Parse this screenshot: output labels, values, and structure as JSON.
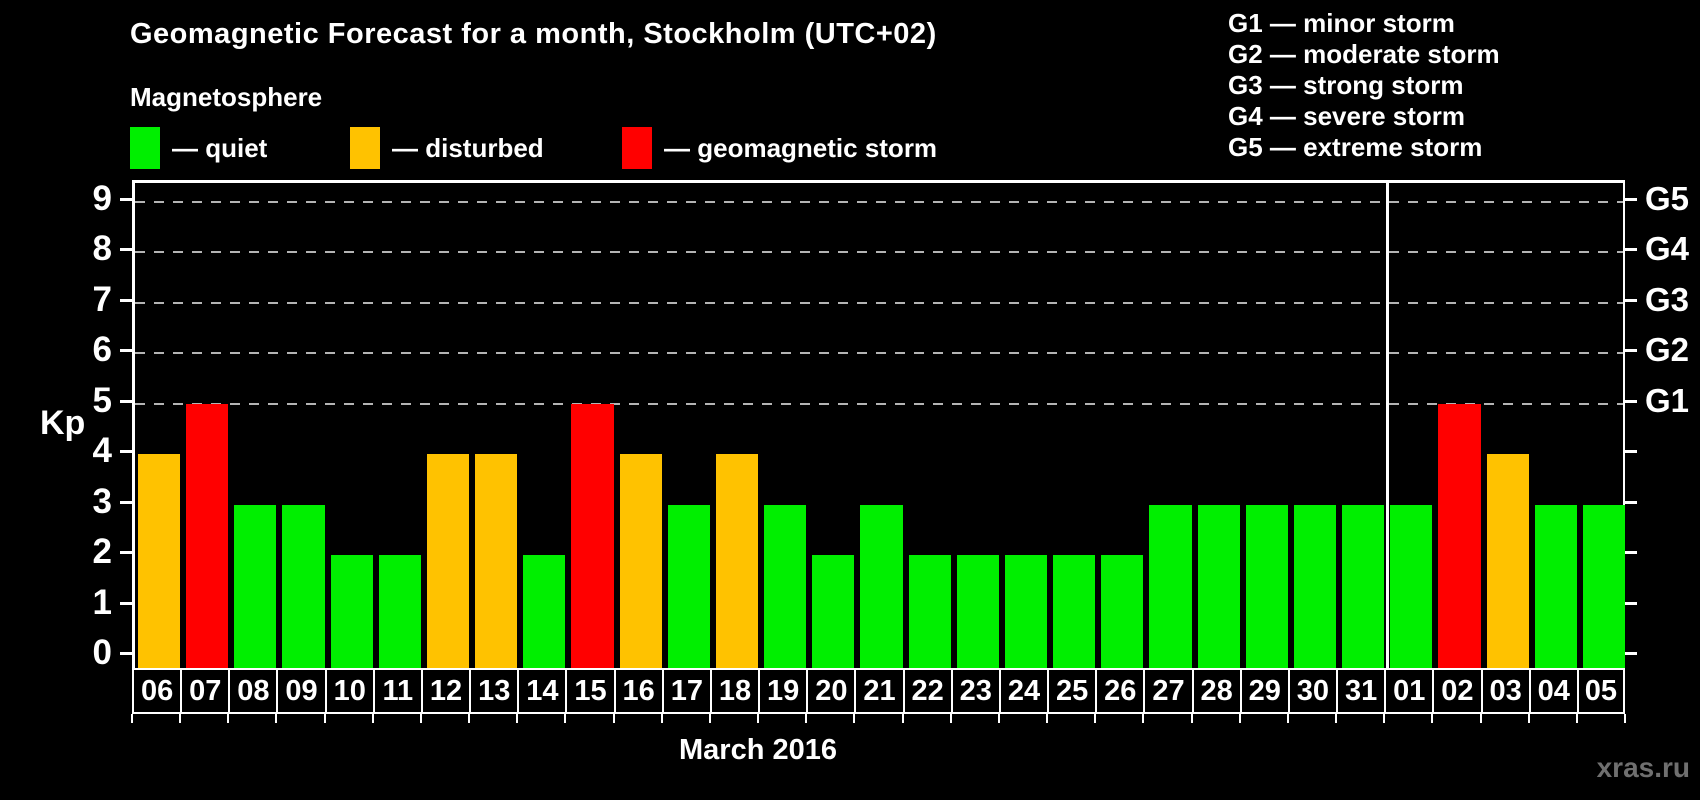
{
  "title": "Geomagnetic Forecast for a month, Stockholm (UTC+02)",
  "legend": {
    "heading": "Magnetosphere",
    "items": [
      {
        "key": "quiet",
        "label": "— quiet",
        "color": "#00ef00"
      },
      {
        "key": "disturbed",
        "label": "— disturbed",
        "color": "#ffc200"
      },
      {
        "key": "storm",
        "label": "— geomagnetic storm",
        "color": "#ff0000"
      }
    ]
  },
  "g_scale_legend": [
    "G1 — minor storm",
    "G2 — moderate storm",
    "G3 — strong storm",
    "G4 — severe storm",
    "G5 — extreme storm"
  ],
  "watermark": "xras.ru",
  "chart_data": {
    "type": "bar",
    "title": "Geomagnetic Forecast for a month, Stockholm (UTC+02)",
    "xlabel": "March 2016",
    "ylabel": "Kp",
    "ylim": [
      -0.3,
      9.4
    ],
    "yticks": [
      0,
      1,
      2,
      3,
      4,
      5,
      6,
      7,
      8,
      9
    ],
    "grid": "dashed horizontal lines at Kp 5-9 only",
    "g_levels": [
      {
        "kp": 5,
        "label": "G1"
      },
      {
        "kp": 6,
        "label": "G2"
      },
      {
        "kp": 7,
        "label": "G3"
      },
      {
        "kp": 8,
        "label": "G4"
      },
      {
        "kp": 9,
        "label": "G5"
      }
    ],
    "month_separator_after_index": 25,
    "days": [
      {
        "day": "06",
        "kp": 4,
        "status": "disturbed"
      },
      {
        "day": "07",
        "kp": 5,
        "status": "storm"
      },
      {
        "day": "08",
        "kp": 3,
        "status": "quiet"
      },
      {
        "day": "09",
        "kp": 3,
        "status": "quiet"
      },
      {
        "day": "10",
        "kp": 2,
        "status": "quiet"
      },
      {
        "day": "11",
        "kp": 2,
        "status": "quiet"
      },
      {
        "day": "12",
        "kp": 4,
        "status": "disturbed"
      },
      {
        "day": "13",
        "kp": 4,
        "status": "disturbed"
      },
      {
        "day": "14",
        "kp": 2,
        "status": "quiet"
      },
      {
        "day": "15",
        "kp": 5,
        "status": "storm"
      },
      {
        "day": "16",
        "kp": 4,
        "status": "disturbed"
      },
      {
        "day": "17",
        "kp": 3,
        "status": "quiet"
      },
      {
        "day": "18",
        "kp": 4,
        "status": "disturbed"
      },
      {
        "day": "19",
        "kp": 3,
        "status": "quiet"
      },
      {
        "day": "20",
        "kp": 2,
        "status": "quiet"
      },
      {
        "day": "21",
        "kp": 3,
        "status": "quiet"
      },
      {
        "day": "22",
        "kp": 2,
        "status": "quiet"
      },
      {
        "day": "23",
        "kp": 2,
        "status": "quiet"
      },
      {
        "day": "24",
        "kp": 2,
        "status": "quiet"
      },
      {
        "day": "25",
        "kp": 2,
        "status": "quiet"
      },
      {
        "day": "26",
        "kp": 2,
        "status": "quiet"
      },
      {
        "day": "27",
        "kp": 3,
        "status": "quiet"
      },
      {
        "day": "28",
        "kp": 3,
        "status": "quiet"
      },
      {
        "day": "29",
        "kp": 3,
        "status": "quiet"
      },
      {
        "day": "30",
        "kp": 3,
        "status": "quiet"
      },
      {
        "day": "31",
        "kp": 3,
        "status": "quiet"
      },
      {
        "day": "01",
        "kp": 3,
        "status": "quiet"
      },
      {
        "day": "02",
        "kp": 5,
        "status": "storm"
      },
      {
        "day": "03",
        "kp": 4,
        "status": "disturbed"
      },
      {
        "day": "04",
        "kp": 3,
        "status": "quiet"
      },
      {
        "day": "05",
        "kp": 3,
        "status": "quiet"
      }
    ],
    "colors": {
      "quiet": "#00ef00",
      "disturbed": "#ffc200",
      "storm": "#ff0000"
    },
    "gridline_color": "#b4b4b4"
  }
}
